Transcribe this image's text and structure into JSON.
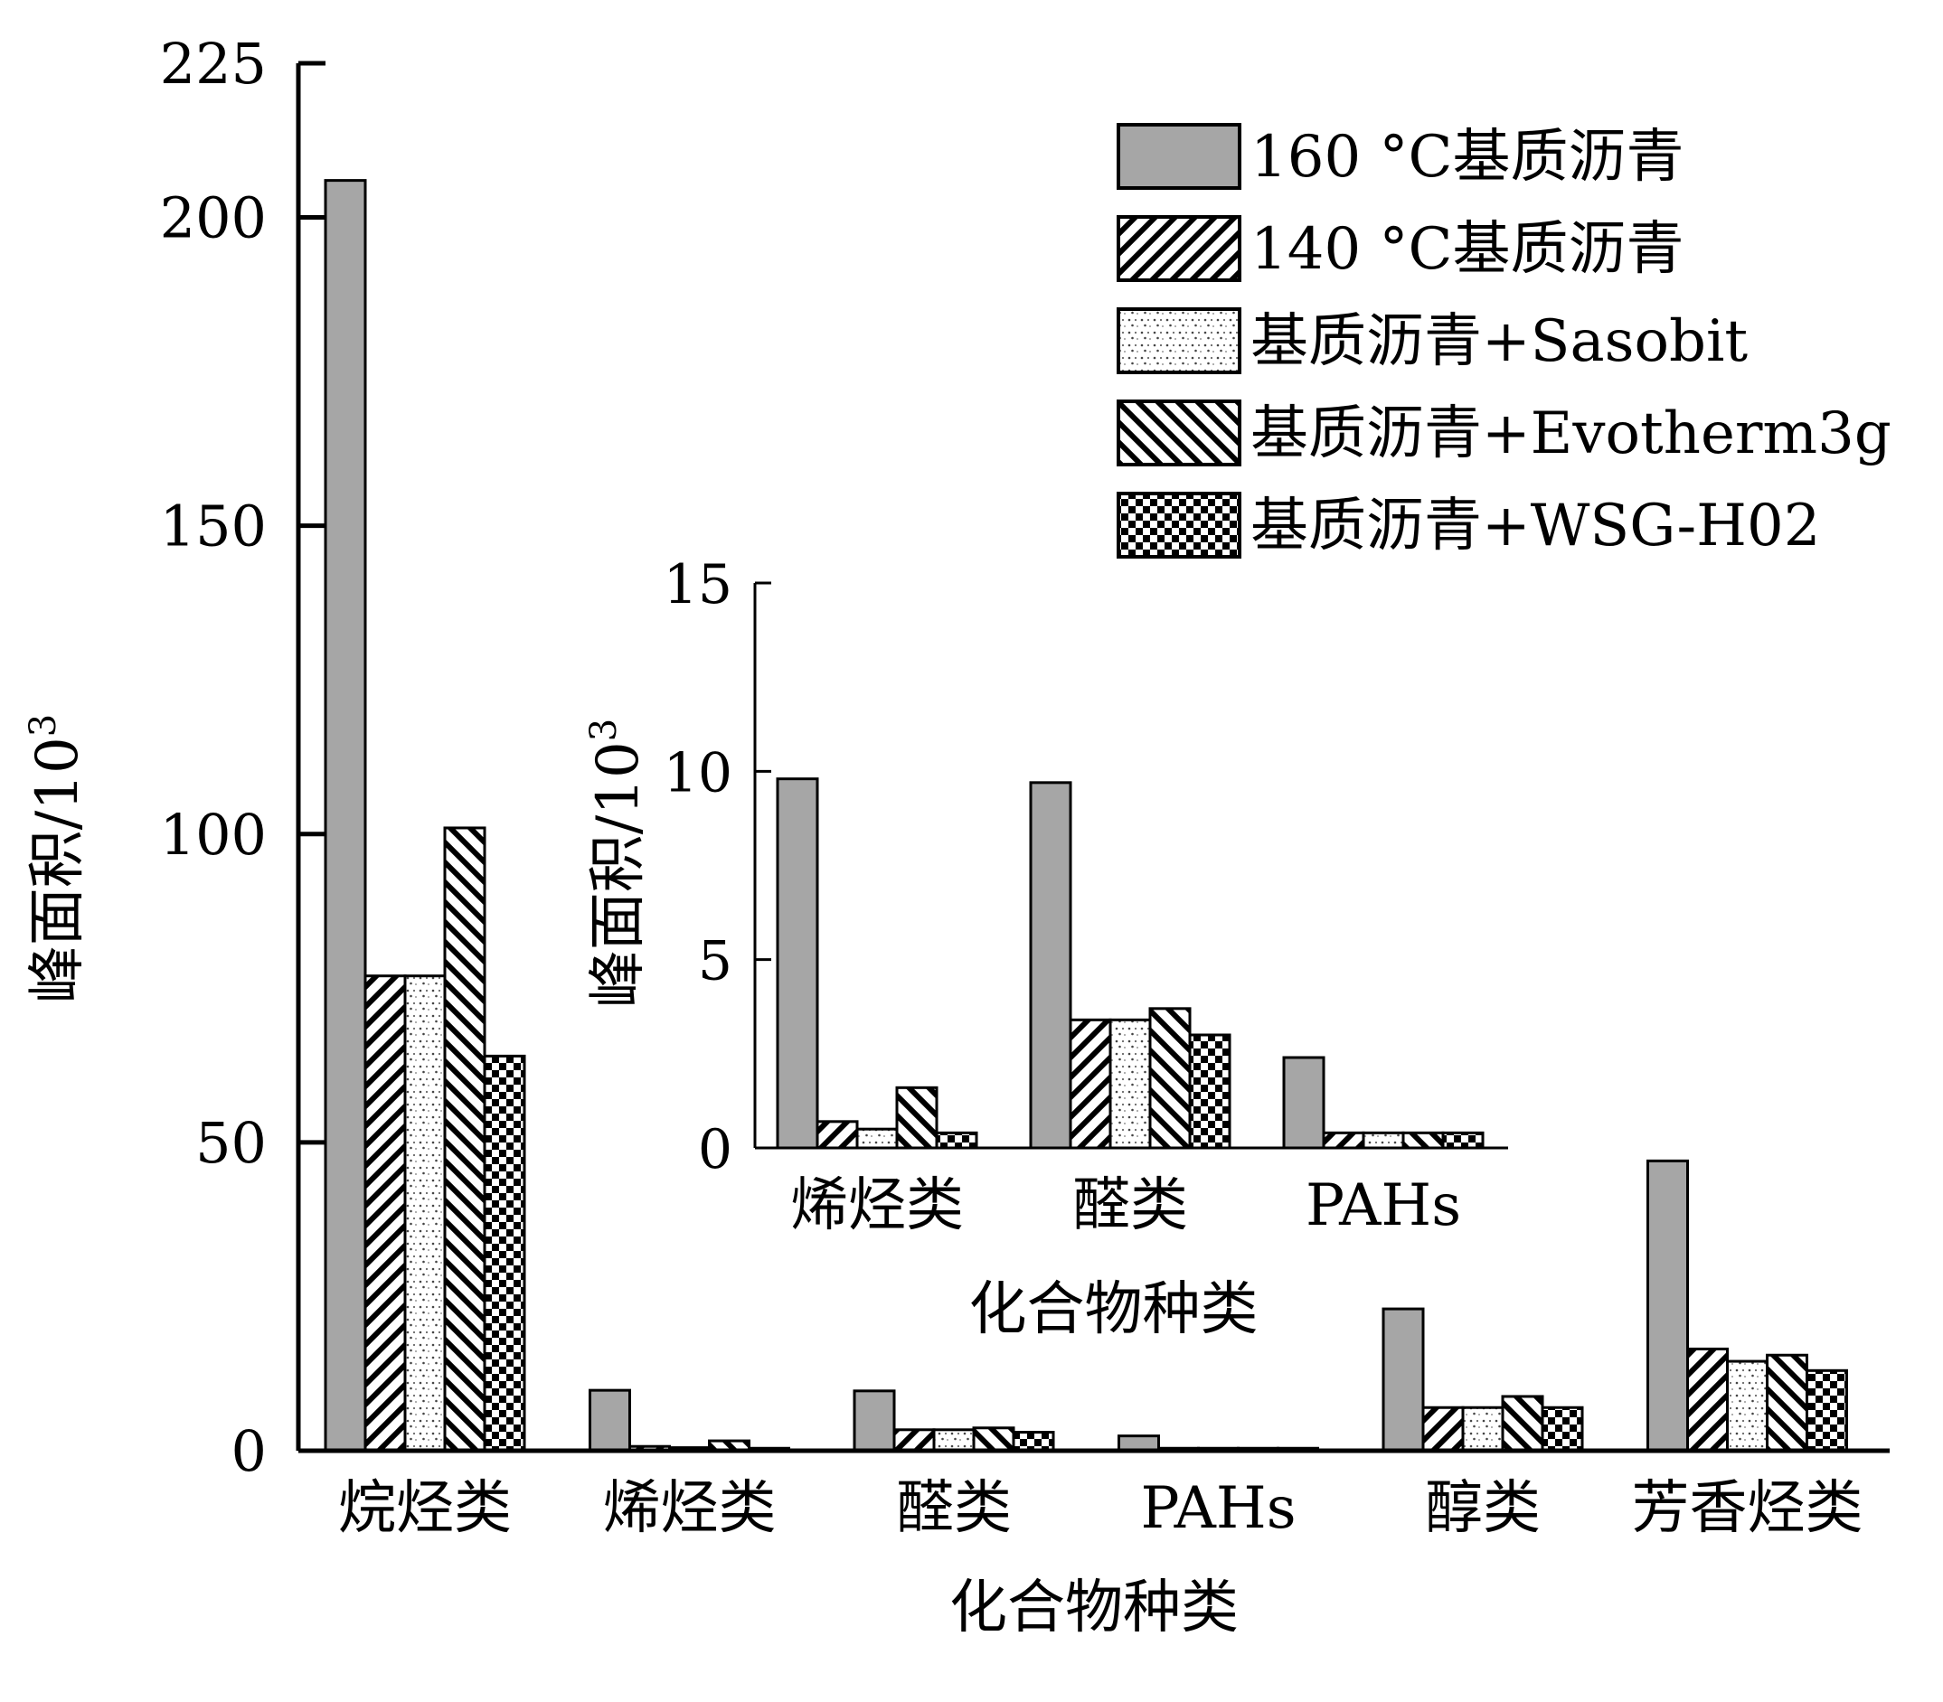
{
  "chart_data": [
    {
      "type": "bar",
      "xlabel": "化合物种类",
      "ylabel": "峰面积/10",
      "ylabel_sup": "3",
      "ylim": [
        0,
        225
      ],
      "yticks": [
        "0",
        "50",
        "100",
        "150",
        "200",
        "225"
      ],
      "categories": [
        "烷烃类",
        "烯烃类",
        "醛类",
        "PAHs",
        "醇类",
        "芳香烃类"
      ],
      "series": [
        {
          "name": "160 °C基质沥青",
          "pattern": "solid-gray",
          "values": [
            206,
            9.8,
            9.7,
            2.4,
            23,
            47
          ]
        },
        {
          "name": "140 °C基质沥青",
          "pattern": "diag-forward",
          "values": [
            77,
            0.7,
            3.4,
            0.4,
            7,
            16.5
          ]
        },
        {
          "name": "基质沥青+Sasobit",
          "pattern": "dots",
          "values": [
            77,
            0.5,
            3.4,
            0.4,
            7,
            14.5
          ]
        },
        {
          "name": "基质沥青+Evotherm3g",
          "pattern": "diag-backward",
          "values": [
            101,
            1.6,
            3.7,
            0.4,
            8.8,
            15.5
          ]
        },
        {
          "name": "基质沥青+WSG-H02",
          "pattern": "checker",
          "values": [
            64,
            0.4,
            3.0,
            0.4,
            7,
            13
          ]
        }
      ],
      "legend_position": "top-right"
    },
    {
      "type": "bar",
      "xlabel": "化合物种类",
      "ylabel": "峰面积/10",
      "ylabel_sup": "3",
      "ylim": [
        0,
        15
      ],
      "yticks": [
        "0",
        "5",
        "10",
        "15"
      ],
      "categories": [
        "烯烃类",
        "醛类",
        "PAHs"
      ],
      "series": [
        {
          "name": "160 °C基质沥青",
          "pattern": "solid-gray",
          "values": [
            9.8,
            9.7,
            2.4
          ]
        },
        {
          "name": "140 °C基质沥青",
          "pattern": "diag-forward",
          "values": [
            0.7,
            3.4,
            0.4
          ]
        },
        {
          "name": "基质沥青+Sasobit",
          "pattern": "dots",
          "values": [
            0.5,
            3.4,
            0.4
          ]
        },
        {
          "name": "基质沥青+Evotherm3g",
          "pattern": "diag-backward",
          "values": [
            1.6,
            3.7,
            0.4
          ]
        },
        {
          "name": "基质沥青+WSG-H02",
          "pattern": "checker",
          "values": [
            0.4,
            3.0,
            0.4
          ]
        }
      ]
    }
  ]
}
